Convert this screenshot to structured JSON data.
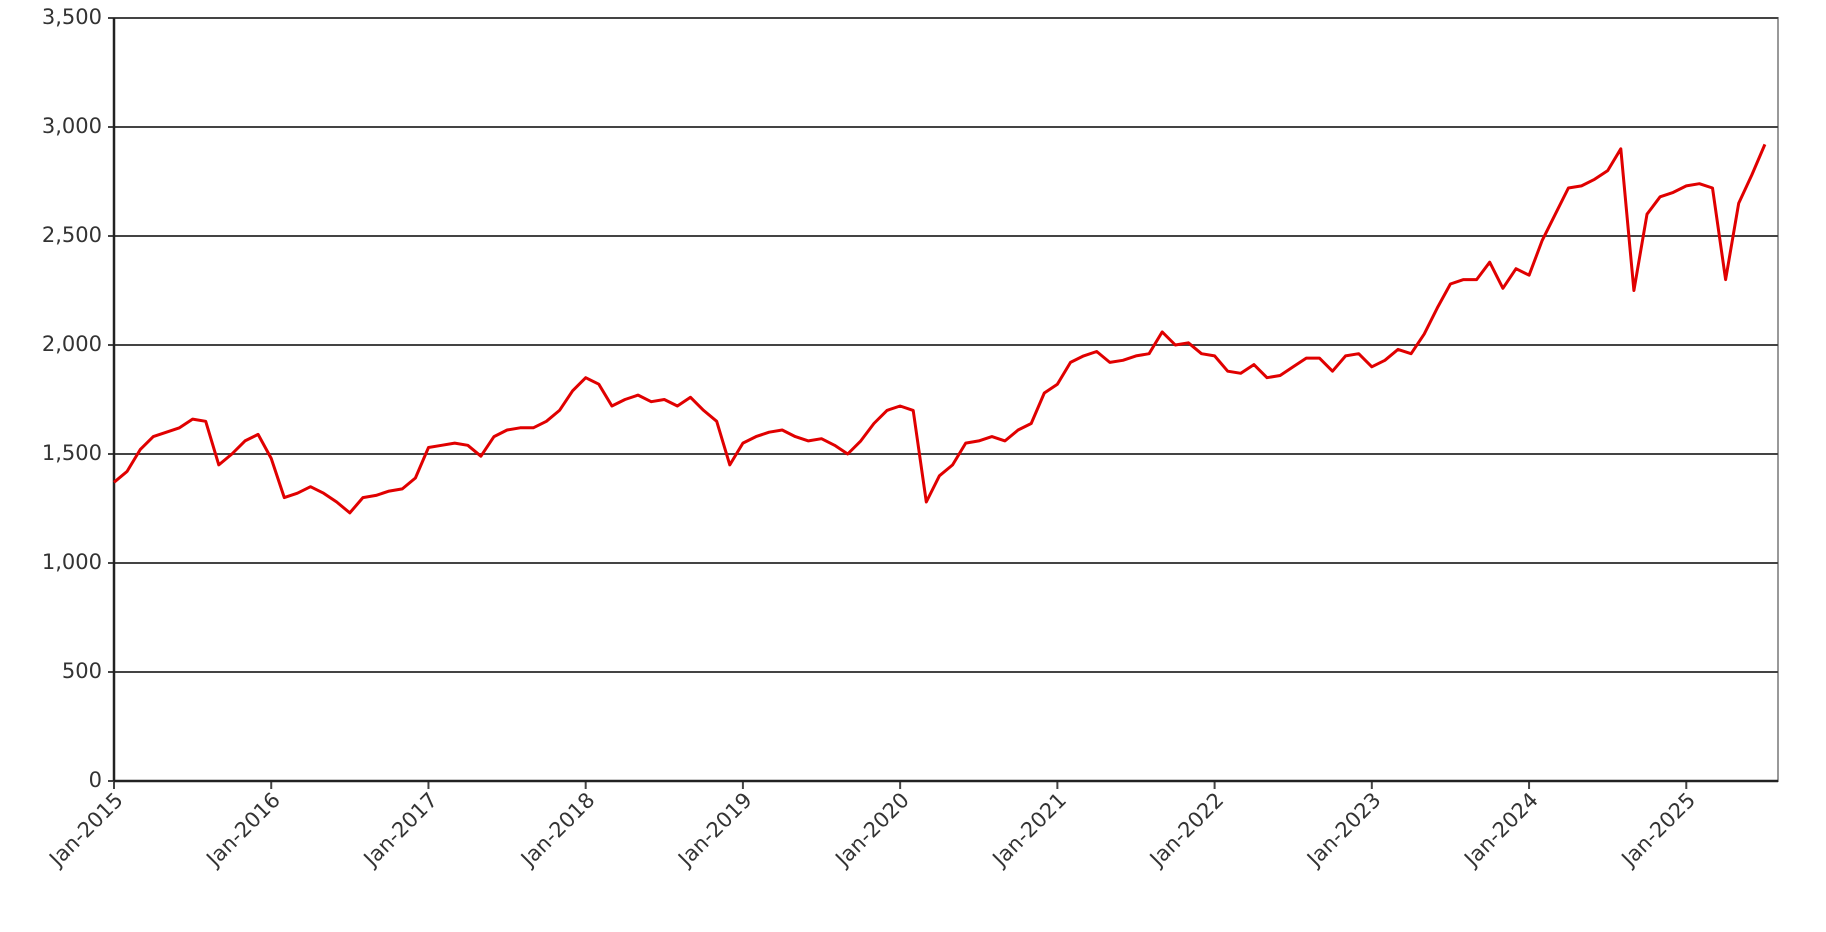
{
  "chart_data": {
    "type": "line",
    "x": [
      "2015-01",
      "2015-02",
      "2015-03",
      "2015-04",
      "2015-05",
      "2015-06",
      "2015-07",
      "2015-08",
      "2015-09",
      "2015-10",
      "2015-11",
      "2015-12",
      "2016-01",
      "2016-02",
      "2016-03",
      "2016-04",
      "2016-05",
      "2016-06",
      "2016-07",
      "2016-08",
      "2016-09",
      "2016-10",
      "2016-11",
      "2016-12",
      "2017-01",
      "2017-02",
      "2017-03",
      "2017-04",
      "2017-05",
      "2017-06",
      "2017-07",
      "2017-08",
      "2017-09",
      "2017-10",
      "2017-11",
      "2017-12",
      "2018-01",
      "2018-02",
      "2018-03",
      "2018-04",
      "2018-05",
      "2018-06",
      "2018-07",
      "2018-08",
      "2018-09",
      "2018-10",
      "2018-11",
      "2018-12",
      "2019-01",
      "2019-02",
      "2019-03",
      "2019-04",
      "2019-05",
      "2019-06",
      "2019-07",
      "2019-08",
      "2019-09",
      "2019-10",
      "2019-11",
      "2019-12",
      "2020-01",
      "2020-02",
      "2020-03",
      "2020-04",
      "2020-05",
      "2020-06",
      "2020-07",
      "2020-08",
      "2020-09",
      "2020-10",
      "2020-11",
      "2020-12",
      "2021-01",
      "2021-02",
      "2021-03",
      "2021-04",
      "2021-05",
      "2021-06",
      "2021-07",
      "2021-08",
      "2021-09",
      "2021-10",
      "2021-11",
      "2021-12",
      "2022-01",
      "2022-02",
      "2022-03",
      "2022-04",
      "2022-05",
      "2022-06",
      "2022-07",
      "2022-08",
      "2022-09",
      "2022-10",
      "2022-11",
      "2022-12",
      "2023-01",
      "2023-02",
      "2023-03",
      "2023-04",
      "2023-05",
      "2023-06",
      "2023-07",
      "2023-08",
      "2023-09",
      "2023-10",
      "2023-11",
      "2023-12",
      "2024-01",
      "2024-02",
      "2024-03",
      "2024-04",
      "2024-05",
      "2024-06",
      "2024-07",
      "2024-08",
      "2024-09",
      "2024-10",
      "2024-11",
      "2024-12",
      "2025-01",
      "2025-02",
      "2025-03",
      "2025-04",
      "2025-05",
      "2025-06",
      "2025-07"
    ],
    "series": [
      {
        "color": "#e00000",
        "values": [
          1370,
          1420,
          1520,
          1580,
          1600,
          1620,
          1660,
          1650,
          1450,
          1500,
          1560,
          1590,
          1480,
          1300,
          1320,
          1350,
          1320,
          1280,
          1230,
          1300,
          1310,
          1330,
          1340,
          1390,
          1530,
          1540,
          1550,
          1540,
          1490,
          1580,
          1610,
          1620,
          1620,
          1650,
          1700,
          1790,
          1850,
          1820,
          1720,
          1750,
          1770,
          1740,
          1750,
          1720,
          1760,
          1700,
          1650,
          1450,
          1550,
          1580,
          1600,
          1610,
          1580,
          1560,
          1570,
          1540,
          1500,
          1560,
          1640,
          1700,
          1720,
          1700,
          1280,
          1400,
          1450,
          1550,
          1560,
          1580,
          1560,
          1610,
          1640,
          1780,
          1820,
          1920,
          1950,
          1970,
          1920,
          1930,
          1950,
          1960,
          2060,
          2000,
          2010,
          1960,
          1950,
          1880,
          1870,
          1910,
          1850,
          1860,
          1900,
          1940,
          1940,
          1880,
          1950,
          1960,
          1900,
          1930,
          1980,
          1960,
          2050,
          2170,
          2280,
          2300,
          2300,
          2380,
          2260,
          2350,
          2320,
          2480,
          2600,
          2720,
          2730,
          2760,
          2800,
          2900,
          2250,
          2600,
          2680,
          2700,
          2730,
          2740,
          2720,
          2300,
          2650,
          2780,
          2920
        ]
      }
    ],
    "xlim": [
      "2015-01",
      "2025-08"
    ],
    "xticks": [
      {
        "value": "2015-01",
        "label": "Jan-2015"
      },
      {
        "value": "2016-01",
        "label": "Jan-2016"
      },
      {
        "value": "2017-01",
        "label": "Jan-2017"
      },
      {
        "value": "2018-01",
        "label": "Jan-2018"
      },
      {
        "value": "2019-01",
        "label": "Jan-2019"
      },
      {
        "value": "2020-01",
        "label": "Jan-2020"
      },
      {
        "value": "2021-01",
        "label": "Jan-2021"
      },
      {
        "value": "2022-01",
        "label": "Jan-2022"
      },
      {
        "value": "2023-01",
        "label": "Jan-2023"
      },
      {
        "value": "2024-01",
        "label": "Jan-2024"
      },
      {
        "value": "2025-01",
        "label": "Jan-2025"
      }
    ],
    "ylim": [
      0,
      3500
    ],
    "yticks": [
      0,
      500,
      {
        "value": 1000,
        "label": "1,000"
      },
      {
        "value": 1500,
        "label": "1,500"
      },
      {
        "value": 2000,
        "label": "2,000"
      },
      {
        "value": 2500,
        "label": "2,500"
      },
      {
        "value": 3000,
        "label": "3,000"
      },
      {
        "value": 3500,
        "label": "3,500"
      }
    ],
    "grid": true
  }
}
